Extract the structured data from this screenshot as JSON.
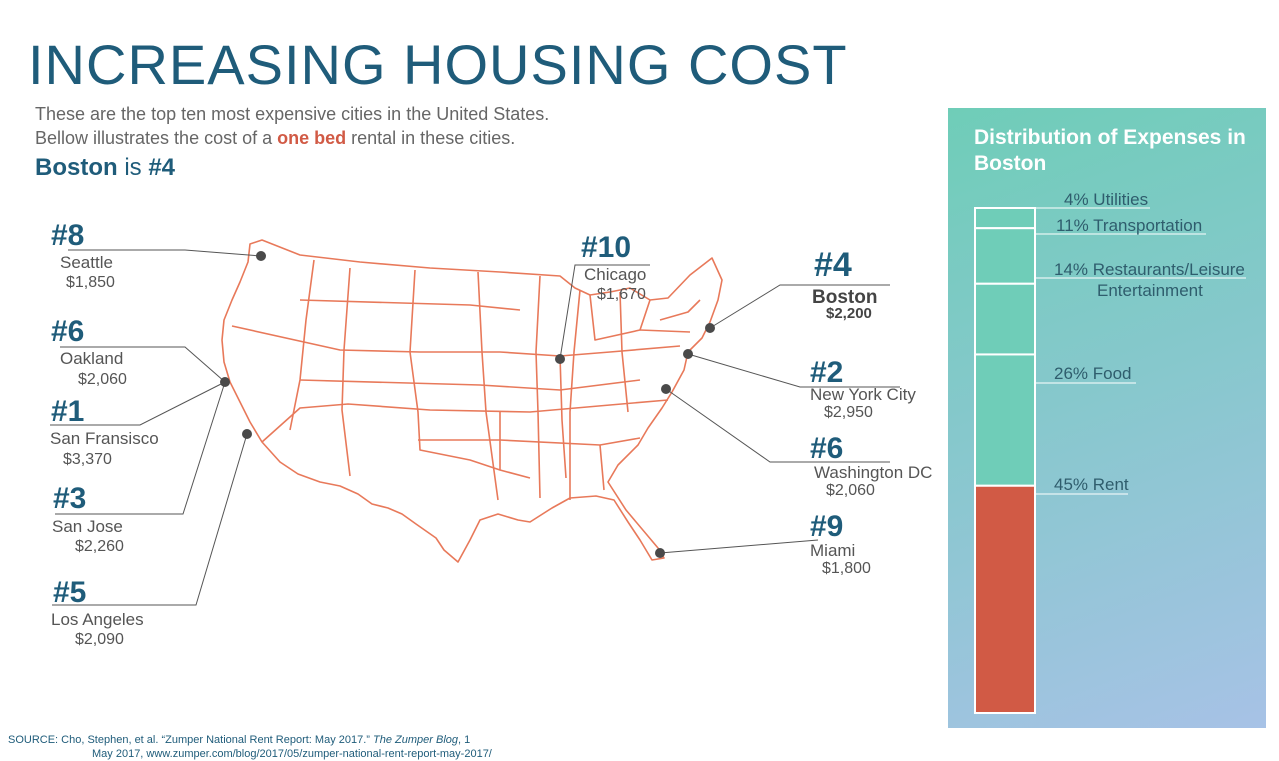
{
  "title": "INCREASING HOUSING COST",
  "subtitle": {
    "line1": "These are the top ten most expensive cities in the United States.",
    "line2_pre": "Bellow illustrates the cost of a ",
    "line2_highlight": "one bed",
    "line2_post": " rental in these cities.",
    "boston_city": "Boston",
    "boston_is": " is ",
    "boston_rank": "#4"
  },
  "cities": [
    {
      "rank": "#8",
      "name": "Seattle",
      "price": "$1,850"
    },
    {
      "rank": "#6",
      "name": "Oakland",
      "price": "$2,060"
    },
    {
      "rank": "#1",
      "name": "San Fransisco",
      "price": "$3,370"
    },
    {
      "rank": "#3",
      "name": "San Jose",
      "price": "$2,260"
    },
    {
      "rank": "#5",
      "name": "Los Angeles",
      "price": "$2,090"
    },
    {
      "rank": "#10",
      "name": "Chicago",
      "price": "$1,670"
    },
    {
      "rank": "#4",
      "name": "Boston",
      "price": "$2,200"
    },
    {
      "rank": "#2",
      "name": "New York City",
      "price": "$2,950"
    },
    {
      "rank": "#6",
      "name": "Washington DC",
      "price": "$2,060"
    },
    {
      "rank": "#9",
      "name": "Miami",
      "price": "$1,800"
    }
  ],
  "panel": {
    "title": "Distribution of Expenses in Boston",
    "items": [
      {
        "label": "4% Utilities",
        "pct": 4
      },
      {
        "label": "11% Transportation",
        "pct": 11
      },
      {
        "label": "14% Restaurants/Leisure",
        "label2": "Entertainment",
        "pct": 14
      },
      {
        "label": "26% Food",
        "pct": 26
      },
      {
        "label": "45% Rent",
        "pct": 45
      }
    ]
  },
  "colors": {
    "accent": "#1f5c7a",
    "highlight": "#d15a45",
    "map_outline": "#e8795a",
    "bar_fill": "#6fcdb8"
  },
  "source": {
    "prefix": "SOURCE:",
    "text1": " Cho, Stephen, et al. “Zumper National Rent Report: May 2017.” ",
    "italic": "The Zumper Blog",
    "text2": ", 1",
    "line2": "May 2017, www.zumper.com/blog/2017/05/zumper-national-rent-report-may-2017/"
  }
}
